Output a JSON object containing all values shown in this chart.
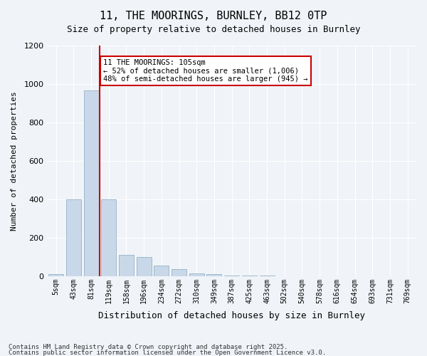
{
  "title_line1": "11, THE MOORINGS, BURNLEY, BB12 0TP",
  "title_line2": "Size of property relative to detached houses in Burnley",
  "xlabel": "Distribution of detached houses by size in Burnley",
  "ylabel": "Number of detached properties",
  "bar_color": "#c8d8e8",
  "bar_edge_color": "#a0b8cc",
  "categories": [
    "5sqm",
    "43sqm",
    "81sqm",
    "119sqm",
    "158sqm",
    "196sqm",
    "234sqm",
    "272sqm",
    "310sqm",
    "349sqm",
    "387sqm",
    "425sqm",
    "463sqm",
    "502sqm",
    "540sqm",
    "578sqm",
    "616sqm",
    "654sqm",
    "693sqm",
    "731sqm",
    "769sqm"
  ],
  "values": [
    10,
    400,
    965,
    400,
    110,
    100,
    55,
    35,
    15,
    10,
    5,
    2,
    2,
    0,
    0,
    0,
    0,
    0,
    0,
    0,
    0
  ],
  "ylim": [
    0,
    1200
  ],
  "yticks": [
    0,
    200,
    400,
    600,
    800,
    1000,
    1200
  ],
  "vline_x_index": 2.5,
  "vline_color": "#cc0000",
  "annotation_text": "11 THE MOORINGS: 105sqm\n← 52% of detached houses are smaller (1,006)\n48% of semi-detached houses are larger (945) →",
  "annotation_box_color": "#cc0000",
  "annotation_fill": "#ffffff",
  "footnote1": "Contains HM Land Registry data © Crown copyright and database right 2025.",
  "footnote2": "Contains public sector information licensed under the Open Government Licence v3.0.",
  "background_color": "#f0f4f8",
  "grid_color": "#ffffff"
}
